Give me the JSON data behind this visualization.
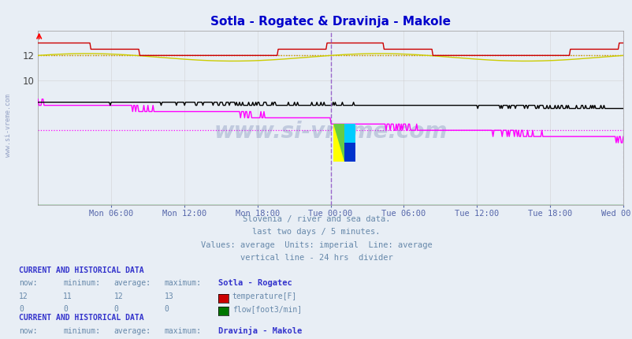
{
  "title": "Sotla - Rogatec & Dravinja - Makole",
  "title_color": "#0000cc",
  "background_color": "#e8eef5",
  "plot_bg_color": "#e8eef5",
  "x_ticks_labels": [
    "Mon 06:00",
    "Mon 12:00",
    "Mon 18:00",
    "Tue 00:00",
    "Tue 06:00",
    "Tue 12:00",
    "Tue 18:00",
    "Wed 00:00"
  ],
  "y_ticks": [
    10,
    12
  ],
  "ylim": [
    0,
    14
  ],
  "sotla_temp_avg": 12.0,
  "dravinja_temp_avg": 12.0,
  "dravinja_flow_avg": 6.0,
  "sotla_temp_color": "#cc0000",
  "sotla_flow_color": "#007700",
  "dravinja_temp_color": "#cccc00",
  "dravinja_flow_color": "#ff00ff",
  "black_line_color": "#000000",
  "divider_color": "#9966cc",
  "watermark_color": "#6677aa",
  "subtitle_lines": [
    "Slovenia / river and sea data.",
    "last two days / 5 minutes.",
    "Values: average  Units: imperial  Line: average",
    "vertical line - 24 hrs  divider"
  ],
  "subtitle_color": "#6688aa",
  "legend1_title": "Sotla - Rogatec",
  "legend2_title": "Dravinja - Makole",
  "table_header_color": "#3333cc",
  "table_data_color": "#6688aa",
  "grid_color": "#cccccc",
  "n_points": 576
}
